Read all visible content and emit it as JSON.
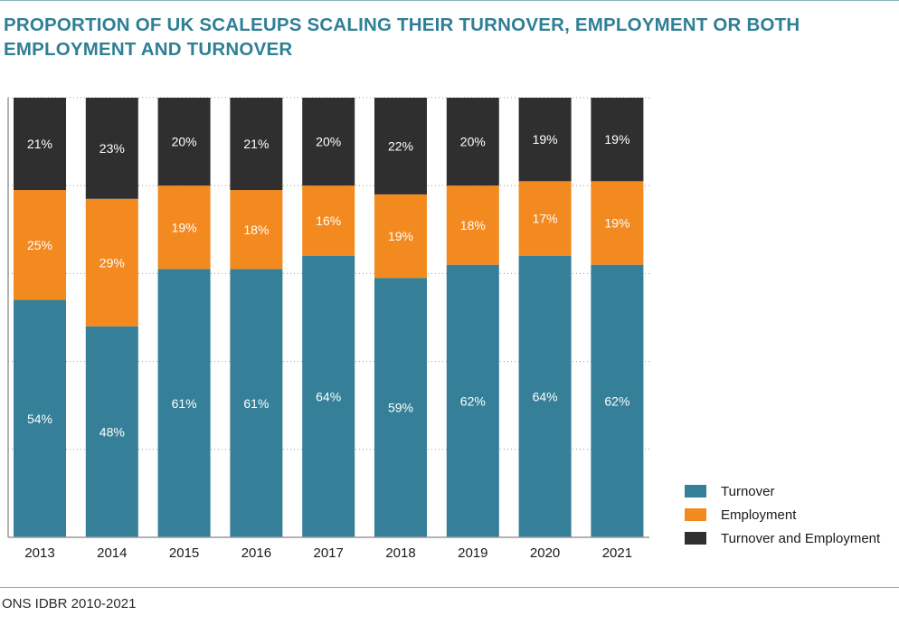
{
  "title": "PROPORTION OF UK SCALEUPS SCALING THEIR TURNOVER, EMPLOYMENT OR BOTH EMPLOYMENT AND TURNOVER",
  "source": "ONS IDBR 2010-2021",
  "colors": {
    "turnover": "#357f98",
    "employment": "#f28a20",
    "both": "#2f2f2f",
    "rule": "#8bb3bd"
  },
  "chart_data": {
    "type": "bar",
    "stacked": true,
    "categories": [
      "2013",
      "2014",
      "2015",
      "2016",
      "2017",
      "2018",
      "2019",
      "2020",
      "2021"
    ],
    "series": [
      {
        "name": "Turnover",
        "values": [
          54,
          48,
          61,
          61,
          64,
          59,
          62,
          64,
          62
        ]
      },
      {
        "name": "Employment",
        "values": [
          25,
          29,
          19,
          18,
          16,
          19,
          18,
          17,
          19
        ]
      },
      {
        "name": "Turnover and Employment",
        "values": [
          21,
          23,
          20,
          21,
          20,
          22,
          20,
          19,
          19
        ]
      }
    ],
    "value_labels": [
      [
        "54%",
        "48%",
        "61%",
        "61%",
        "64%",
        "59%",
        "62%",
        "64%",
        "62%"
      ],
      [
        "25%",
        "29%",
        "19%",
        "18%",
        "16%",
        "19%",
        "18%",
        "17%",
        "19%"
      ],
      [
        "21%",
        "23%",
        "20%",
        "21%",
        "20%",
        "22%",
        "20%",
        "19%",
        "19%"
      ]
    ],
    "ylim": [
      0,
      100
    ],
    "grid": true,
    "legend": "right"
  }
}
